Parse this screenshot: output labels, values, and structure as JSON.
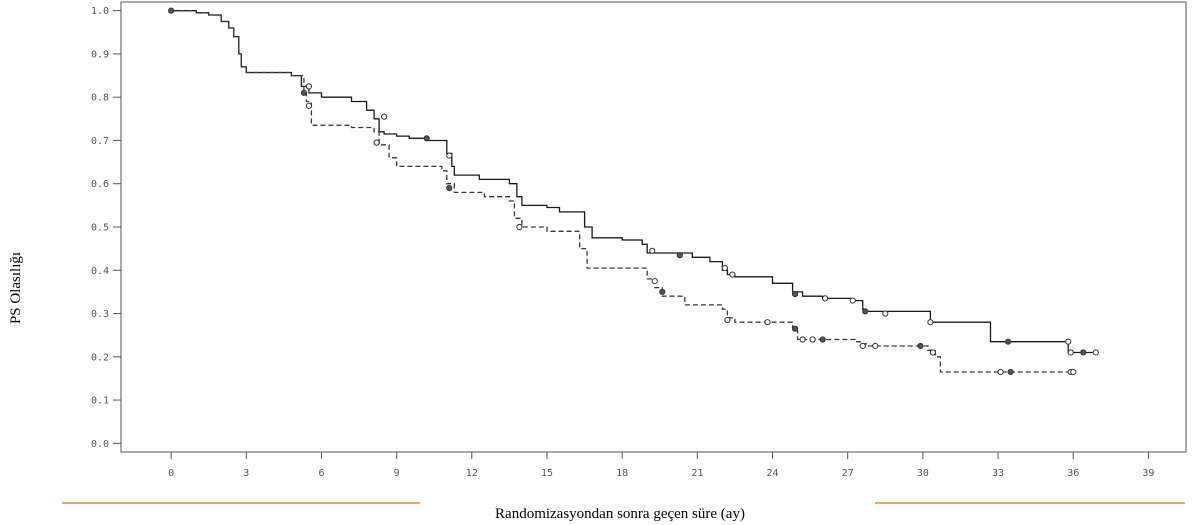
{
  "chart_data": {
    "type": "line",
    "step": true,
    "title": "",
    "xlabel": "Randomizasyondan sonra geçen süre (ay)",
    "ylabel": "PS Olasılığı",
    "xlim": [
      -2,
      40.5
    ],
    "ylim": [
      -0.02,
      1.02
    ],
    "xticks": [
      0,
      3,
      6,
      9,
      12,
      15,
      18,
      21,
      24,
      27,
      30,
      33,
      36,
      39
    ],
    "yticks": [
      "0.0",
      "0.1",
      "0.2",
      "0.3",
      "0.4",
      "0.5",
      "0.6",
      "0.7",
      "0.8",
      "0.9",
      "1.0"
    ],
    "grid": false,
    "colors": {
      "solid": "#1a1a1a",
      "dashed": "#3a3a3a",
      "decor": "#e0883a",
      "axis": "#555555"
    },
    "series": [
      {
        "style": "solid",
        "x": [
          0,
          1,
          1.5,
          2,
          2.3,
          2.5,
          2.7,
          2.8,
          3,
          4.8,
          5.2,
          5.5,
          6,
          7.2,
          7.8,
          8.1,
          8.3,
          8.5,
          9,
          9.5,
          10.2,
          11,
          11.2,
          11.3,
          12.3,
          13.5,
          13.8,
          14,
          15,
          15.5,
          16.5,
          16.8,
          18,
          18.8,
          19,
          20.8,
          21.5,
          22,
          22.2,
          22.5,
          24,
          24.8,
          25.2,
          26,
          27.2,
          27.6,
          27.7,
          28.5,
          30.3,
          32.7,
          33.4,
          35.8,
          37
        ],
        "y": [
          1.0,
          0.995,
          0.99,
          0.975,
          0.96,
          0.94,
          0.9,
          0.87,
          0.857,
          0.85,
          0.825,
          0.81,
          0.8,
          0.79,
          0.77,
          0.75,
          0.72,
          0.715,
          0.71,
          0.705,
          0.7,
          0.67,
          0.64,
          0.62,
          0.61,
          0.6,
          0.57,
          0.55,
          0.545,
          0.535,
          0.5,
          0.475,
          0.47,
          0.46,
          0.44,
          0.43,
          0.42,
          0.4,
          0.39,
          0.385,
          0.37,
          0.35,
          0.34,
          0.335,
          0.33,
          0.31,
          0.305,
          0.305,
          0.28,
          0.235,
          0.235,
          0.21,
          0.21
        ],
        "markers": [
          [
            0,
            1.0
          ],
          [
            5.5,
            0.825
          ],
          [
            8.5,
            0.755
          ],
          [
            10.2,
            0.705
          ],
          [
            11.1,
            0.665
          ],
          [
            19.2,
            0.445
          ],
          [
            20.3,
            0.435
          ],
          [
            22.1,
            0.405
          ],
          [
            22.4,
            0.39
          ],
          [
            24.9,
            0.345
          ],
          [
            26.1,
            0.335
          ],
          [
            27.2,
            0.33
          ],
          [
            27.7,
            0.305
          ],
          [
            28.5,
            0.3
          ],
          [
            30.3,
            0.28
          ],
          [
            33.4,
            0.235
          ],
          [
            35.8,
            0.235
          ],
          [
            35.9,
            0.21
          ],
          [
            36.4,
            0.21
          ],
          [
            36.9,
            0.21
          ]
        ]
      },
      {
        "style": "dashed",
        "x": [
          0,
          1,
          1.5,
          2,
          2.3,
          2.5,
          2.7,
          2.8,
          3,
          4.8,
          5.3,
          5.4,
          5.6,
          7.2,
          8.1,
          8.3,
          8.7,
          9,
          10.8,
          11,
          11.3,
          12.5,
          13.5,
          13.7,
          14,
          15,
          16.3,
          16.6,
          19,
          19.3,
          19.6,
          20.5,
          22,
          22.2,
          22.5,
          24.8,
          25,
          25.5,
          27.3,
          27.5,
          27.8,
          29.5,
          30.2,
          30.5,
          30.7,
          36
        ],
        "y": [
          1.0,
          0.995,
          0.99,
          0.975,
          0.96,
          0.94,
          0.9,
          0.87,
          0.857,
          0.85,
          0.81,
          0.79,
          0.735,
          0.73,
          0.72,
          0.69,
          0.66,
          0.64,
          0.63,
          0.6,
          0.58,
          0.57,
          0.56,
          0.52,
          0.5,
          0.49,
          0.45,
          0.405,
          0.38,
          0.36,
          0.34,
          0.32,
          0.31,
          0.29,
          0.28,
          0.26,
          0.24,
          0.24,
          0.235,
          0.23,
          0.225,
          0.225,
          0.215,
          0.2,
          0.165,
          0.165
        ],
        "markers": [
          [
            5.3,
            0.81
          ],
          [
            5.5,
            0.78
          ],
          [
            8.2,
            0.695
          ],
          [
            11.1,
            0.59
          ],
          [
            13.9,
            0.5
          ],
          [
            19.3,
            0.375
          ],
          [
            19.6,
            0.35
          ],
          [
            22.2,
            0.285
          ],
          [
            23.8,
            0.28
          ],
          [
            24.9,
            0.265
          ],
          [
            25.2,
            0.24
          ],
          [
            25.6,
            0.24
          ],
          [
            26.0,
            0.24
          ],
          [
            27.6,
            0.225
          ],
          [
            28.1,
            0.225
          ],
          [
            29.9,
            0.225
          ],
          [
            30.4,
            0.21
          ],
          [
            33.1,
            0.165
          ],
          [
            33.5,
            0.165
          ],
          [
            35.9,
            0.165
          ],
          [
            36.0,
            0.165
          ]
        ]
      }
    ]
  }
}
